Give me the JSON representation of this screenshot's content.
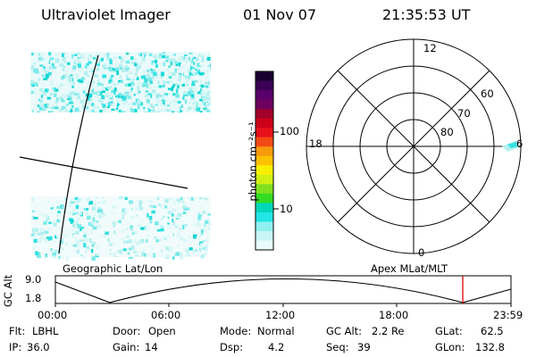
{
  "header": {
    "instrument": "Ultraviolet Imager",
    "date": "01 Nov 07",
    "time": "21:35:53 UT"
  },
  "colorbar": {
    "label": "photon cm⁻²s⁻¹",
    "ticks": [
      "100",
      "10"
    ],
    "colors": [
      "#1a0030",
      "#3a0055",
      "#5a006a",
      "#6e0060",
      "#a0002a",
      "#cc0018",
      "#e8101a",
      "#f24a14",
      "#f89a0a",
      "#fcc200",
      "#f8f000",
      "#cff012",
      "#7fe020",
      "#34dc24",
      "#00d8b8",
      "#22e6e6",
      "#8ff0f0",
      "#c9f5f5",
      "#eafafa"
    ]
  },
  "left_panel": {
    "label": "Geographic Lat/Lon",
    "image_colors": [
      "#00d4d4",
      "#32e0e0",
      "#7aeaea",
      "#b4f0f0",
      "#d8f6f6",
      "#eafafa"
    ]
  },
  "right_panel": {
    "label": "Apex MLat/MLT",
    "mlt_labels": [
      "12",
      "18",
      "6",
      "0"
    ],
    "mlat_labels": [
      "60",
      "70",
      "80"
    ]
  },
  "alt_plot": {
    "ylabel": "GC Alt",
    "yticks": [
      "9.0",
      "1.8"
    ],
    "xticks": [
      "00:00",
      "06:00",
      "12:00",
      "18:00",
      "23:59"
    ],
    "marker_color": "#e00000"
  },
  "info": {
    "row1": [
      {
        "key": "Flt:",
        "value": "LBHL"
      },
      {
        "key": "Door:",
        "value": "Open"
      },
      {
        "key": "Mode:",
        "value": "Normal"
      },
      {
        "key": "GC Alt:",
        "value": "2.2 Re"
      },
      {
        "key": "GLat:",
        "value": "62.5"
      }
    ],
    "row2": [
      {
        "key": "IP:",
        "value": "36.0"
      },
      {
        "key": "Gain:",
        "value": "14"
      },
      {
        "key": "Dsp:",
        "value": "4.2"
      },
      {
        "key": "Seq:",
        "value": "39"
      },
      {
        "key": "GLon:",
        "value": "132.8"
      }
    ]
  }
}
